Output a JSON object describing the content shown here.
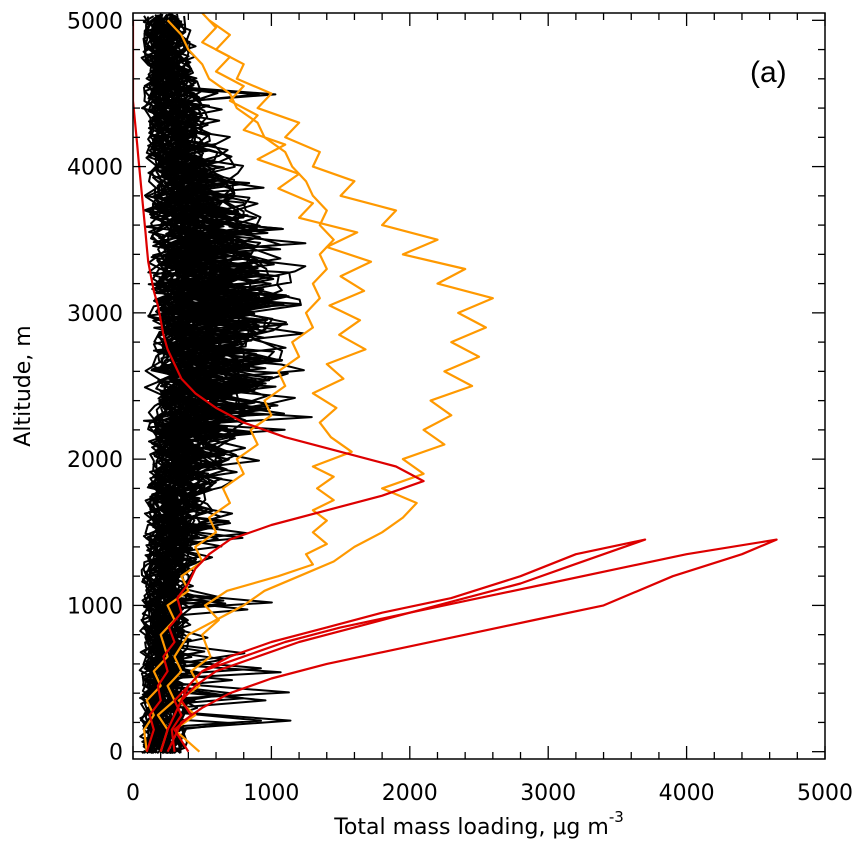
{
  "chart_data": {
    "type": "line",
    "panel_label": "(a)",
    "xlabel": "Total mass loading, μg m",
    "xlabel_exponent": "-3",
    "ylabel": "Altitude, m",
    "xlim": [
      0,
      5000
    ],
    "ylim": [
      -50,
      5050
    ],
    "xticks": [
      0,
      1000,
      2000,
      3000,
      4000,
      5000
    ],
    "yticks": [
      0,
      1000,
      2000,
      3000,
      4000,
      5000
    ],
    "xtick_labels": [
      "0",
      "1000",
      "2000",
      "3000",
      "4000",
      "5000"
    ],
    "ytick_labels": [
      "0",
      "1000",
      "2000",
      "3000",
      "4000",
      "5000"
    ],
    "grid": false,
    "legend": "none",
    "colors": {
      "background": "#000000",
      "orange": "#ff9900",
      "red": "#dd0000"
    },
    "series": [
      {
        "color": "#ff9900",
        "points": [
          [
            480,
            0
          ],
          [
            300,
            150
          ],
          [
            450,
            250
          ],
          [
            330,
            350
          ],
          [
            480,
            450
          ],
          [
            420,
            550
          ],
          [
            560,
            650
          ],
          [
            500,
            800
          ],
          [
            620,
            900
          ],
          [
            520,
            1000
          ],
          [
            680,
            1100
          ],
          [
            1050,
            1200
          ],
          [
            1300,
            1280
          ],
          [
            1250,
            1350
          ],
          [
            1400,
            1420
          ],
          [
            1300,
            1500
          ],
          [
            1400,
            1580
          ],
          [
            1300,
            1650
          ],
          [
            1450,
            1720
          ],
          [
            1330,
            1800
          ],
          [
            1450,
            1880
          ],
          [
            1300,
            1950
          ],
          [
            1580,
            2050
          ],
          [
            1430,
            2150
          ],
          [
            1350,
            2250
          ],
          [
            1470,
            2350
          ],
          [
            1300,
            2450
          ],
          [
            1520,
            2550
          ],
          [
            1400,
            2650
          ],
          [
            1680,
            2750
          ],
          [
            1490,
            2850
          ],
          [
            1640,
            2950
          ],
          [
            1420,
            3050
          ],
          [
            1670,
            3150
          ],
          [
            1500,
            3250
          ],
          [
            1720,
            3350
          ],
          [
            1400,
            3450
          ],
          [
            1620,
            3550
          ],
          [
            1200,
            3650
          ],
          [
            1300,
            3750
          ],
          [
            1050,
            3850
          ],
          [
            1200,
            3950
          ],
          [
            900,
            4050
          ],
          [
            1100,
            4150
          ],
          [
            800,
            4250
          ],
          [
            900,
            4350
          ],
          [
            700,
            4450
          ],
          [
            800,
            4550
          ],
          [
            600,
            4650
          ],
          [
            700,
            4750
          ],
          [
            500,
            4850
          ],
          [
            600,
            4950
          ],
          [
            500,
            5050
          ]
        ]
      },
      {
        "color": "#ff9900",
        "points": [
          [
            200,
            0
          ],
          [
            250,
            150
          ],
          [
            180,
            250
          ],
          [
            300,
            350
          ],
          [
            250,
            450
          ],
          [
            350,
            550
          ],
          [
            300,
            650
          ],
          [
            400,
            800
          ],
          [
            600,
            900
          ],
          [
            800,
            1000
          ],
          [
            950,
            1100
          ],
          [
            1200,
            1200
          ],
          [
            1450,
            1300
          ],
          [
            1600,
            1400
          ],
          [
            1800,
            1500
          ],
          [
            1950,
            1600
          ],
          [
            2050,
            1700
          ],
          [
            1800,
            1800
          ],
          [
            2100,
            1900
          ],
          [
            1950,
            2000
          ],
          [
            2250,
            2100
          ],
          [
            2100,
            2200
          ],
          [
            2300,
            2300
          ],
          [
            2150,
            2400
          ],
          [
            2450,
            2500
          ],
          [
            2250,
            2600
          ],
          [
            2500,
            2700
          ],
          [
            2300,
            2800
          ],
          [
            2550,
            2900
          ],
          [
            2350,
            3000
          ],
          [
            2600,
            3100
          ],
          [
            2200,
            3200
          ],
          [
            2400,
            3300
          ],
          [
            1950,
            3400
          ],
          [
            2200,
            3500
          ],
          [
            1800,
            3600
          ],
          [
            1900,
            3700
          ],
          [
            1500,
            3800
          ],
          [
            1600,
            3900
          ],
          [
            1300,
            4000
          ],
          [
            1350,
            4100
          ],
          [
            1100,
            4200
          ],
          [
            1200,
            4300
          ],
          [
            900,
            4400
          ],
          [
            1000,
            4500
          ],
          [
            750,
            4600
          ],
          [
            800,
            4700
          ],
          [
            600,
            4800
          ],
          [
            700,
            4900
          ],
          [
            550,
            5000
          ]
        ]
      },
      {
        "color": "#ff9900",
        "points": [
          [
            100,
            0
          ],
          [
            80,
            150
          ],
          [
            150,
            250
          ],
          [
            100,
            350
          ],
          [
            200,
            450
          ],
          [
            150,
            550
          ],
          [
            250,
            650
          ],
          [
            200,
            800
          ],
          [
            300,
            900
          ],
          [
            250,
            1000
          ],
          [
            400,
            1100
          ],
          [
            350,
            1200
          ],
          [
            500,
            1300
          ],
          [
            450,
            1400
          ],
          [
            600,
            1500
          ],
          [
            550,
            1600
          ],
          [
            700,
            1700
          ],
          [
            650,
            1800
          ],
          [
            800,
            1900
          ],
          [
            750,
            2000
          ],
          [
            900,
            2100
          ],
          [
            850,
            2200
          ],
          [
            1000,
            2300
          ],
          [
            950,
            2400
          ],
          [
            1100,
            2500
          ],
          [
            1050,
            2600
          ],
          [
            1200,
            2700
          ],
          [
            1150,
            2800
          ],
          [
            1300,
            2900
          ],
          [
            1250,
            3000
          ],
          [
            1350,
            3100
          ],
          [
            1300,
            3200
          ],
          [
            1400,
            3300
          ],
          [
            1350,
            3400
          ],
          [
            1450,
            3500
          ],
          [
            1350,
            3600
          ],
          [
            1400,
            3700
          ],
          [
            1300,
            3800
          ],
          [
            1250,
            3900
          ],
          [
            1150,
            4000
          ],
          [
            1100,
            4100
          ],
          [
            950,
            4200
          ],
          [
            900,
            4300
          ],
          [
            750,
            4400
          ],
          [
            700,
            4500
          ],
          [
            550,
            4600
          ],
          [
            500,
            4700
          ],
          [
            400,
            4800
          ],
          [
            350,
            4900
          ],
          [
            250,
            5000
          ]
        ]
      },
      {
        "color": "#dd0000",
        "points": [
          [
            400,
            0
          ],
          [
            300,
            150
          ],
          [
            420,
            250
          ],
          [
            350,
            350
          ],
          [
            450,
            450
          ],
          [
            600,
            550
          ],
          [
            900,
            650
          ],
          [
            1200,
            750
          ],
          [
            1600,
            850
          ],
          [
            2000,
            950
          ],
          [
            2500,
            1050
          ],
          [
            3000,
            1150
          ],
          [
            3500,
            1250
          ],
          [
            4000,
            1350
          ],
          [
            4650,
            1450
          ],
          [
            4400,
            1350
          ],
          [
            3900,
            1200
          ],
          [
            3400,
            1000
          ],
          [
            2900,
            900
          ],
          [
            2400,
            800
          ],
          [
            1900,
            700
          ],
          [
            1400,
            600
          ],
          [
            1000,
            500
          ],
          [
            700,
            400
          ],
          [
            500,
            300
          ],
          [
            350,
            200
          ],
          [
            300,
            100
          ],
          [
            250,
            0
          ]
        ]
      },
      {
        "color": "#dd0000",
        "points": [
          [
            300,
            0
          ],
          [
            280,
            150
          ],
          [
            350,
            250
          ],
          [
            300,
            350
          ],
          [
            400,
            450
          ],
          [
            500,
            550
          ],
          [
            800,
            650
          ],
          [
            1100,
            750
          ],
          [
            1500,
            850
          ],
          [
            2000,
            950
          ],
          [
            2400,
            1050
          ],
          [
            2800,
            1150
          ],
          [
            3100,
            1250
          ],
          [
            3400,
            1350
          ],
          [
            3700,
            1450
          ],
          [
            3200,
            1350
          ],
          [
            2800,
            1200
          ],
          [
            2300,
            1050
          ],
          [
            1800,
            950
          ],
          [
            1400,
            850
          ],
          [
            1000,
            750
          ],
          [
            700,
            650
          ],
          [
            500,
            550
          ],
          [
            400,
            450
          ],
          [
            350,
            350
          ],
          [
            300,
            250
          ],
          [
            250,
            150
          ],
          [
            200,
            0
          ]
        ]
      },
      {
        "color": "#dd0000",
        "points": [
          [
            100,
            0
          ],
          [
            150,
            150
          ],
          [
            120,
            250
          ],
          [
            200,
            350
          ],
          [
            180,
            450
          ],
          [
            250,
            550
          ],
          [
            220,
            650
          ],
          [
            300,
            750
          ],
          [
            260,
            850
          ],
          [
            350,
            950
          ],
          [
            320,
            1050
          ],
          [
            400,
            1150
          ],
          [
            450,
            1250
          ],
          [
            550,
            1350
          ],
          [
            700,
            1450
          ],
          [
            1000,
            1550
          ],
          [
            1400,
            1650
          ],
          [
            1800,
            1750
          ],
          [
            2100,
            1850
          ],
          [
            1900,
            1950
          ],
          [
            1500,
            2050
          ],
          [
            1100,
            2150
          ],
          [
            800,
            2250
          ],
          [
            600,
            2350
          ],
          [
            450,
            2450
          ],
          [
            350,
            2550
          ],
          [
            300,
            2650
          ],
          [
            250,
            2750
          ],
          [
            220,
            2850
          ],
          [
            200,
            2950
          ],
          [
            180,
            3050
          ],
          [
            150,
            3150
          ],
          [
            130,
            3250
          ],
          [
            110,
            3350
          ],
          [
            100,
            3450
          ],
          [
            90,
            3550
          ],
          [
            80,
            3650
          ],
          [
            70,
            3750
          ],
          [
            60,
            3850
          ],
          [
            50,
            3950
          ],
          [
            40,
            4050
          ],
          [
            30,
            4150
          ],
          [
            20,
            4250
          ],
          [
            10,
            4350
          ],
          [
            0,
            4450
          ],
          [
            0,
            5000
          ]
        ]
      }
    ]
  }
}
